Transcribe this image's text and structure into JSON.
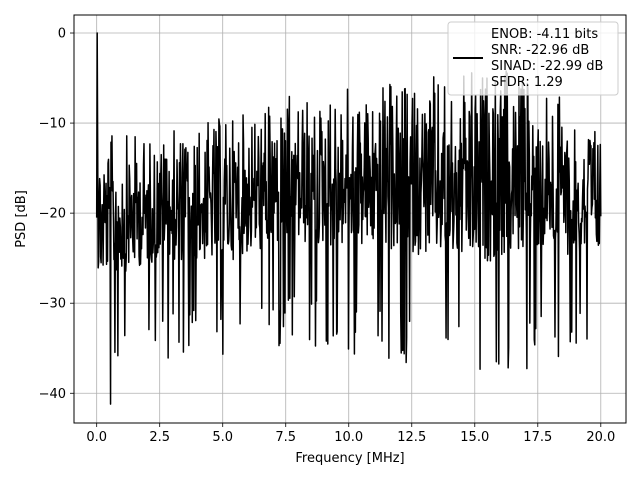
{
  "chart_data": {
    "type": "line",
    "title": "",
    "xlabel": "Frequency [MHz]",
    "ylabel": "PSD [dB]",
    "xlim": [
      -0.9,
      21.0
    ],
    "ylim": [
      -43.3,
      2.0
    ],
    "xticks": [
      0.0,
      2.5,
      5.0,
      7.5,
      10.0,
      12.5,
      15.0,
      17.5,
      20.0
    ],
    "xtick_labels": [
      "0.0",
      "2.5",
      "5.0",
      "7.5",
      "10.0",
      "12.5",
      "15.0",
      "17.5",
      "20.0"
    ],
    "yticks": [
      0,
      -10,
      -20,
      -30,
      -40
    ],
    "ytick_labels": [
      "0",
      "−10",
      "−20",
      "−30",
      "−40"
    ],
    "grid": true,
    "legend_placement": "top-right",
    "legend_lines": [
      "ENOB: -4.11 bits",
      "SNR: -22.96 dB",
      "SINAD: -22.99 dB",
      "SFDR: 1.29"
    ],
    "series": [
      {
        "color": "#000000",
        "x_range": [
          0.0,
          20.0
        ],
        "points": 1024,
        "peak": {
          "x": 0.02,
          "y": 0.0
        },
        "minimum": {
          "x": 0.55,
          "y": -41.2
        },
        "envelope_low_to_high": [
          {
            "x": 0.0,
            "low": -33,
            "high": -11
          },
          {
            "x": 2.5,
            "low": -30,
            "high": -11
          },
          {
            "x": 5.0,
            "low": -31,
            "high": -9
          },
          {
            "x": 7.5,
            "low": -29,
            "high": -7
          },
          {
            "x": 10.0,
            "low": -30,
            "high": -6
          },
          {
            "x": 12.5,
            "low": -31,
            "high": -5
          },
          {
            "x": 15.0,
            "low": -33,
            "high": -4
          },
          {
            "x": 17.5,
            "low": -31,
            "high": -4
          },
          {
            "x": 20.0,
            "low": -30,
            "high": -10
          }
        ],
        "typical_level_dB": -15
      }
    ]
  }
}
